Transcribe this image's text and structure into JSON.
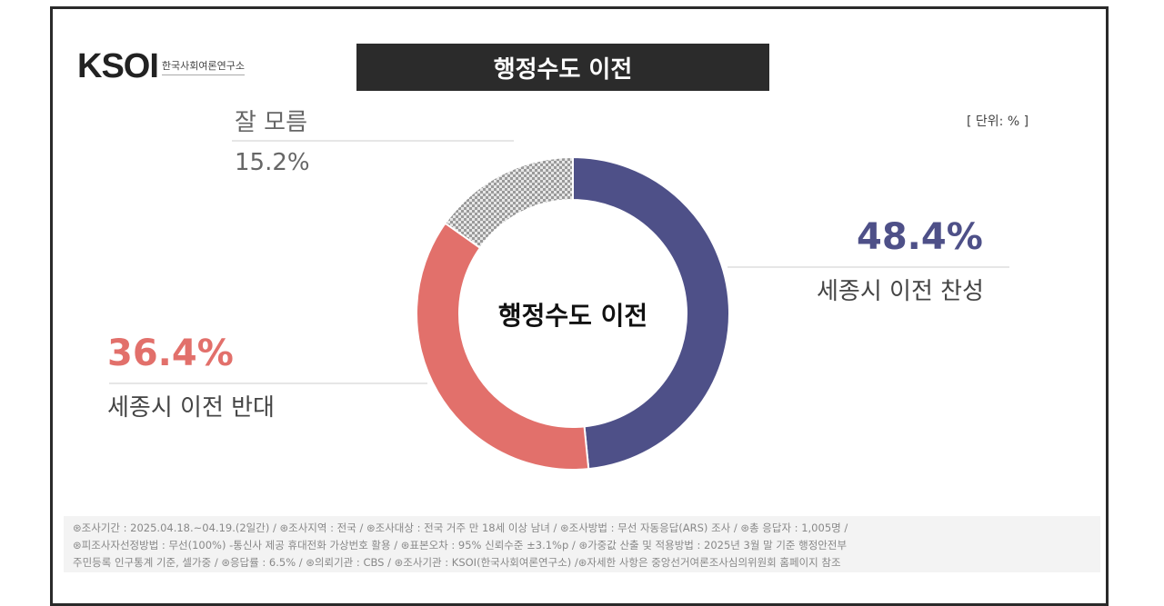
{
  "logo": {
    "mark": "KSOI",
    "subtitle": "한국사회여론연구소"
  },
  "title": "행정수도 이전",
  "unit": "[ 단위: % ]",
  "chart_data": {
    "type": "pie",
    "subtype": "donut",
    "title": "행정수도 이전",
    "center_label": "행정수도 이전",
    "unit": "%",
    "slices": [
      {
        "label": "세종시 이전 찬성",
        "value": 48.4,
        "display": "48.4%",
        "color": "#4e5088"
      },
      {
        "label": "세종시 이전 반대",
        "value": 36.4,
        "display": "36.4%",
        "color": "#e2706b"
      },
      {
        "label": "잘 모름",
        "value": 15.2,
        "display": "15.2%",
        "color": "#c8c8c8"
      }
    ]
  },
  "footer": [
    "⊛조사기간 : 2025.04.18.~04.19.(2일간)  / ⊛조사지역 : 전국 / ⊛조사대상 : 전국 거주 만 18세 이상 남녀 / ⊛조사방법 : 무선 자동응답(ARS) 조사 / ⊛총 응답자 : 1,005명 /",
    "⊛피조사자선정방법 : 무선(100%) -통신사 제공 휴대전화 가상번호 활용 / ⊛표본오차 : 95% 신뢰수준 ±3.1%p / ⊛가중값 산출 및 적용방법 : 2025년 3월 말 기준 행정안전부",
    "주민등록 인구통계 기준, 셀가중 / ⊛응답률 : 6.5% / ⊛의뢰기관 : CBS / ⊛조사기관 : KSOI(한국사회여론연구소) /⊛자세한 사항은 중앙선거여론조사심의위원회 홈페이지 참조"
  ]
}
